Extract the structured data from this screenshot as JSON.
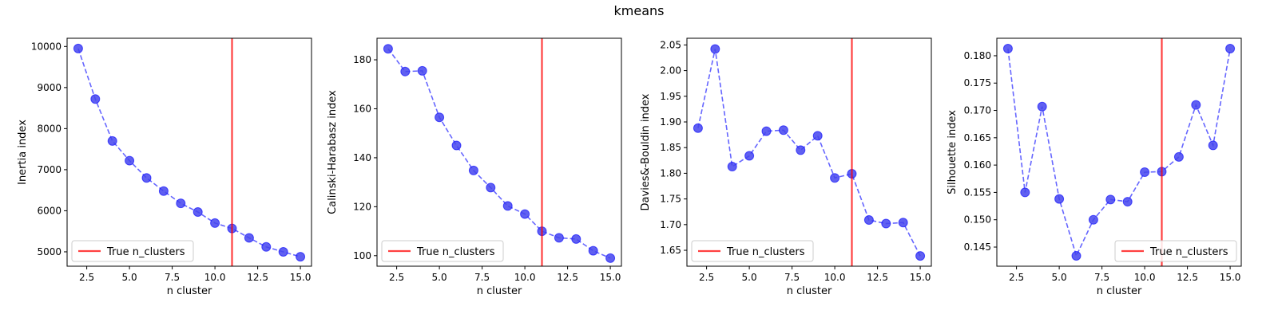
{
  "figure": {
    "suptitle": "kmeans"
  },
  "colors": {
    "series": "#0000ff",
    "marker_fill": "#4444ee",
    "true_line": "#ff0000"
  },
  "chart_data": [
    {
      "type": "line",
      "title": "",
      "xlabel": "n cluster",
      "ylabel": "Inertia index",
      "x": [
        2,
        3,
        4,
        5,
        6,
        7,
        8,
        9,
        10,
        11,
        12,
        13,
        14,
        15
      ],
      "xlim": [
        1.35,
        15.65
      ],
      "ylim": [
        4650,
        10200
      ],
      "xticks": [
        2.5,
        5.0,
        7.5,
        10.0,
        12.5,
        15.0
      ],
      "xtick_labels": [
        "2.5",
        "5.0",
        "7.5",
        "10.0",
        "12.5",
        "15.0"
      ],
      "yticks": [
        5000,
        6000,
        7000,
        8000,
        9000,
        10000
      ],
      "ytick_labels": [
        "5000",
        "6000",
        "7000",
        "8000",
        "9000",
        "10000"
      ],
      "series": [
        {
          "values": [
            9950,
            8720,
            7700,
            7220,
            6800,
            6480,
            6180,
            5970,
            5700,
            5570,
            5340,
            5120,
            5000,
            4880
          ]
        }
      ],
      "vline": {
        "x": 11,
        "label": "True n_clusters"
      },
      "legend": "lower-left",
      "grid": false
    },
    {
      "type": "line",
      "title": "",
      "xlabel": "n cluster",
      "ylabel": "Calinski-Harabasz index",
      "x": [
        2,
        3,
        4,
        5,
        6,
        7,
        8,
        9,
        10,
        11,
        12,
        13,
        14,
        15
      ],
      "xlim": [
        1.35,
        15.65
      ],
      "ylim": [
        95.7,
        188.8
      ],
      "xticks": [
        2.5,
        5.0,
        7.5,
        10.0,
        12.5,
        15.0
      ],
      "xtick_labels": [
        "2.5",
        "5.0",
        "7.5",
        "10.0",
        "12.5",
        "15.0"
      ],
      "yticks": [
        100,
        120,
        140,
        160,
        180
      ],
      "ytick_labels": [
        "100",
        "120",
        "140",
        "160",
        "180"
      ],
      "series": [
        {
          "values": [
            184.5,
            175.2,
            175.5,
            156.5,
            145.0,
            134.8,
            127.8,
            120.3,
            117.0,
            110.0,
            107.3,
            106.8,
            102.0,
            99.0
          ]
        }
      ],
      "vline": {
        "x": 11,
        "label": "True n_clusters"
      },
      "legend": "lower-left",
      "grid": false
    },
    {
      "type": "line",
      "title": "",
      "xlabel": "n cluster",
      "ylabel": "Davies&-Bouldin index",
      "x": [
        2,
        3,
        4,
        5,
        6,
        7,
        8,
        9,
        10,
        11,
        12,
        13,
        14,
        15
      ],
      "xlim": [
        1.35,
        15.65
      ],
      "ylim": [
        1.619,
        2.063
      ],
      "xticks": [
        2.5,
        5.0,
        7.5,
        10.0,
        12.5,
        15.0
      ],
      "xtick_labels": [
        "2.5",
        "5.0",
        "7.5",
        "10.0",
        "12.5",
        "15.0"
      ],
      "yticks": [
        1.65,
        1.7,
        1.75,
        1.8,
        1.85,
        1.9,
        1.95,
        2.0,
        2.05
      ],
      "ytick_labels": [
        "1.65",
        "1.70",
        "1.75",
        "1.80",
        "1.85",
        "1.90",
        "1.95",
        "2.00",
        "2.05"
      ],
      "series": [
        {
          "values": [
            1.888,
            2.042,
            1.813,
            1.834,
            1.882,
            1.884,
            1.845,
            1.873,
            1.791,
            1.799,
            1.709,
            1.702,
            1.704,
            1.639
          ]
        }
      ],
      "vline": {
        "x": 11,
        "label": "True n_clusters"
      },
      "legend": "lower-left",
      "grid": false
    },
    {
      "type": "line",
      "title": "",
      "xlabel": "n cluster",
      "ylabel": "Silhouette index",
      "x": [
        2,
        3,
        4,
        5,
        6,
        7,
        8,
        9,
        10,
        11,
        12,
        13,
        14,
        15
      ],
      "xlim": [
        1.35,
        15.65
      ],
      "ylim": [
        0.1415,
        0.1832
      ],
      "xticks": [
        2.5,
        5.0,
        7.5,
        10.0,
        12.5,
        15.0
      ],
      "xtick_labels": [
        "2.5",
        "5.0",
        "7.5",
        "10.0",
        "12.5",
        "15.0"
      ],
      "yticks": [
        0.145,
        0.15,
        0.155,
        0.16,
        0.165,
        0.17,
        0.175,
        0.18
      ],
      "ytick_labels": [
        "0.145",
        "0.150",
        "0.155",
        "0.160",
        "0.165",
        "0.170",
        "0.175",
        "0.180"
      ],
      "series": [
        {
          "values": [
            0.1813,
            0.155,
            0.1707,
            0.1538,
            0.1434,
            0.15,
            0.1537,
            0.1533,
            0.1587,
            0.1588,
            0.1615,
            0.171,
            0.1636,
            0.1813
          ]
        }
      ],
      "vline": {
        "x": 11,
        "label": "True n_clusters"
      },
      "legend": "lower-right",
      "grid": false
    }
  ]
}
